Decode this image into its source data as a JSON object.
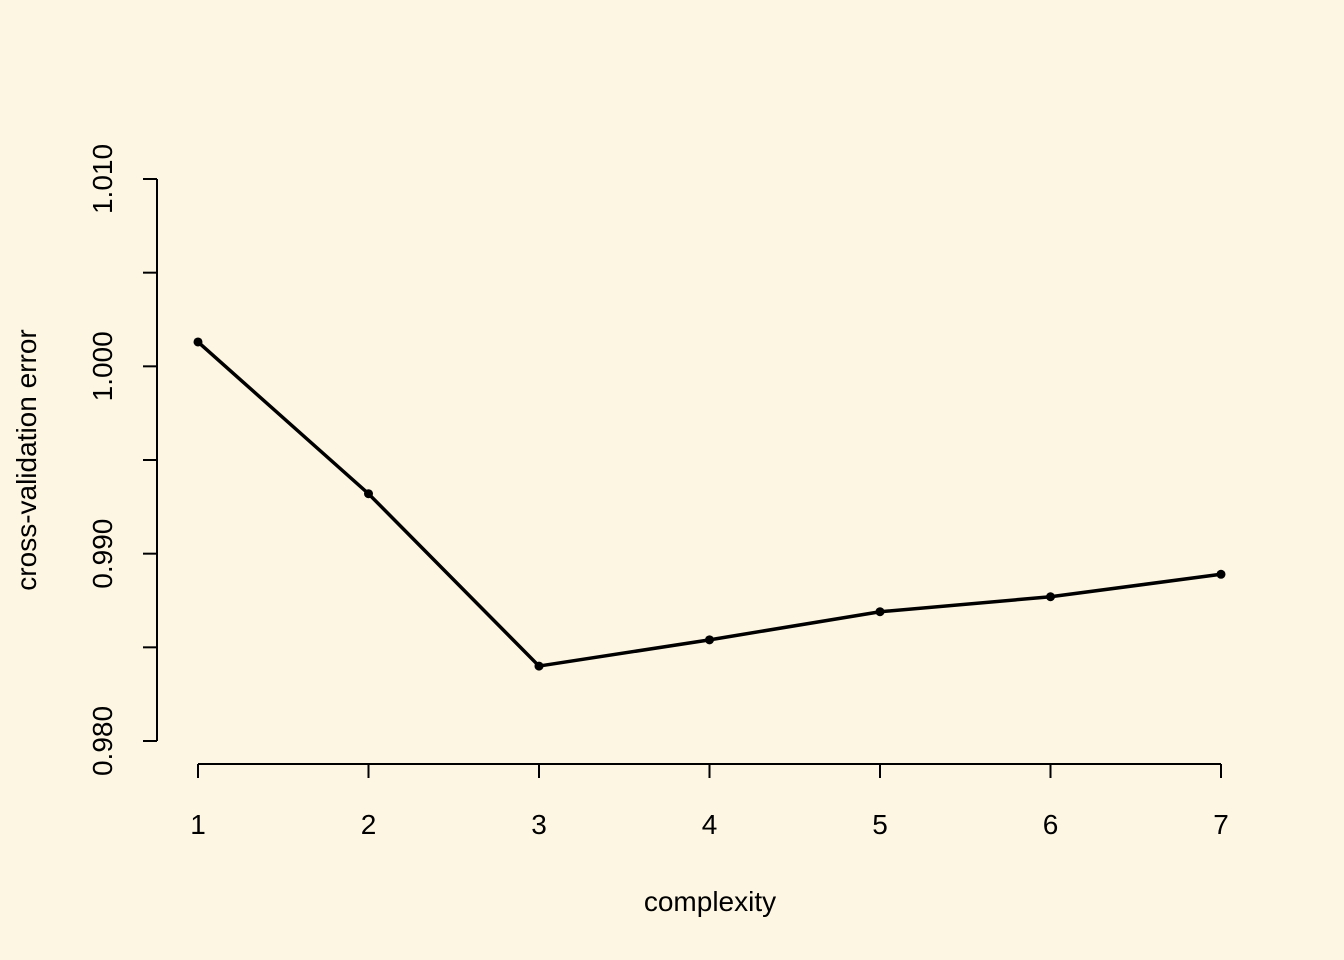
{
  "chart_data": {
    "type": "line",
    "title": "",
    "xlabel": "complexity",
    "ylabel": "cross-validation error",
    "x": [
      1,
      2,
      3,
      4,
      5,
      6,
      7
    ],
    "series": [
      {
        "values": [
          1.0013,
          0.9932,
          0.984,
          0.9854,
          0.9869,
          0.9877,
          0.9889
        ]
      }
    ],
    "xticks": [
      1,
      2,
      3,
      4,
      5,
      6,
      7
    ],
    "xtick_labels": [
      "1",
      "2",
      "3",
      "4",
      "5",
      "6",
      "7"
    ],
    "yticks": [
      0.98,
      0.985,
      0.99,
      0.995,
      1.0,
      1.005,
      1.01
    ],
    "ytick_labels": [
      "0.980",
      "",
      "0.990",
      "",
      "1.000",
      "",
      "1.010"
    ],
    "xlim": [
      1,
      7
    ],
    "ylim": [
      0.98,
      1.01
    ],
    "grid": false,
    "colors": {
      "background": "#fdf6e3",
      "line": "#000000"
    }
  }
}
